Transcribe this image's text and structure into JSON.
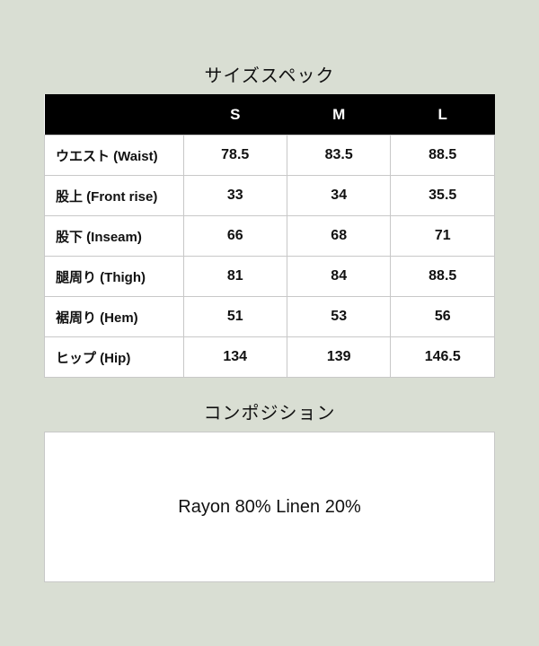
{
  "size_spec": {
    "title": "サイズスペック",
    "columns": [
      "",
      "S",
      "M",
      "L"
    ],
    "rows": [
      {
        "label": "ウエスト (Waist)",
        "values": [
          "78.5",
          "83.5",
          "88.5"
        ]
      },
      {
        "label": "股上 (Front rise)",
        "values": [
          "33",
          "34",
          "35.5"
        ]
      },
      {
        "label": "股下 (Inseam)",
        "values": [
          "66",
          "68",
          "71"
        ]
      },
      {
        "label": "腿周り (Thigh)",
        "values": [
          "81",
          "84",
          "88.5"
        ]
      },
      {
        "label": "裾周り (Hem)",
        "values": [
          "51",
          "53",
          "56"
        ]
      },
      {
        "label": "ヒップ (Hip)",
        "values": [
          "134",
          "139",
          "146.5"
        ]
      }
    ]
  },
  "composition": {
    "title": "コンポジション",
    "text": "Rayon 80% Linen 20%"
  },
  "colors": {
    "background": "#d9ded3",
    "header": "#000000"
  }
}
